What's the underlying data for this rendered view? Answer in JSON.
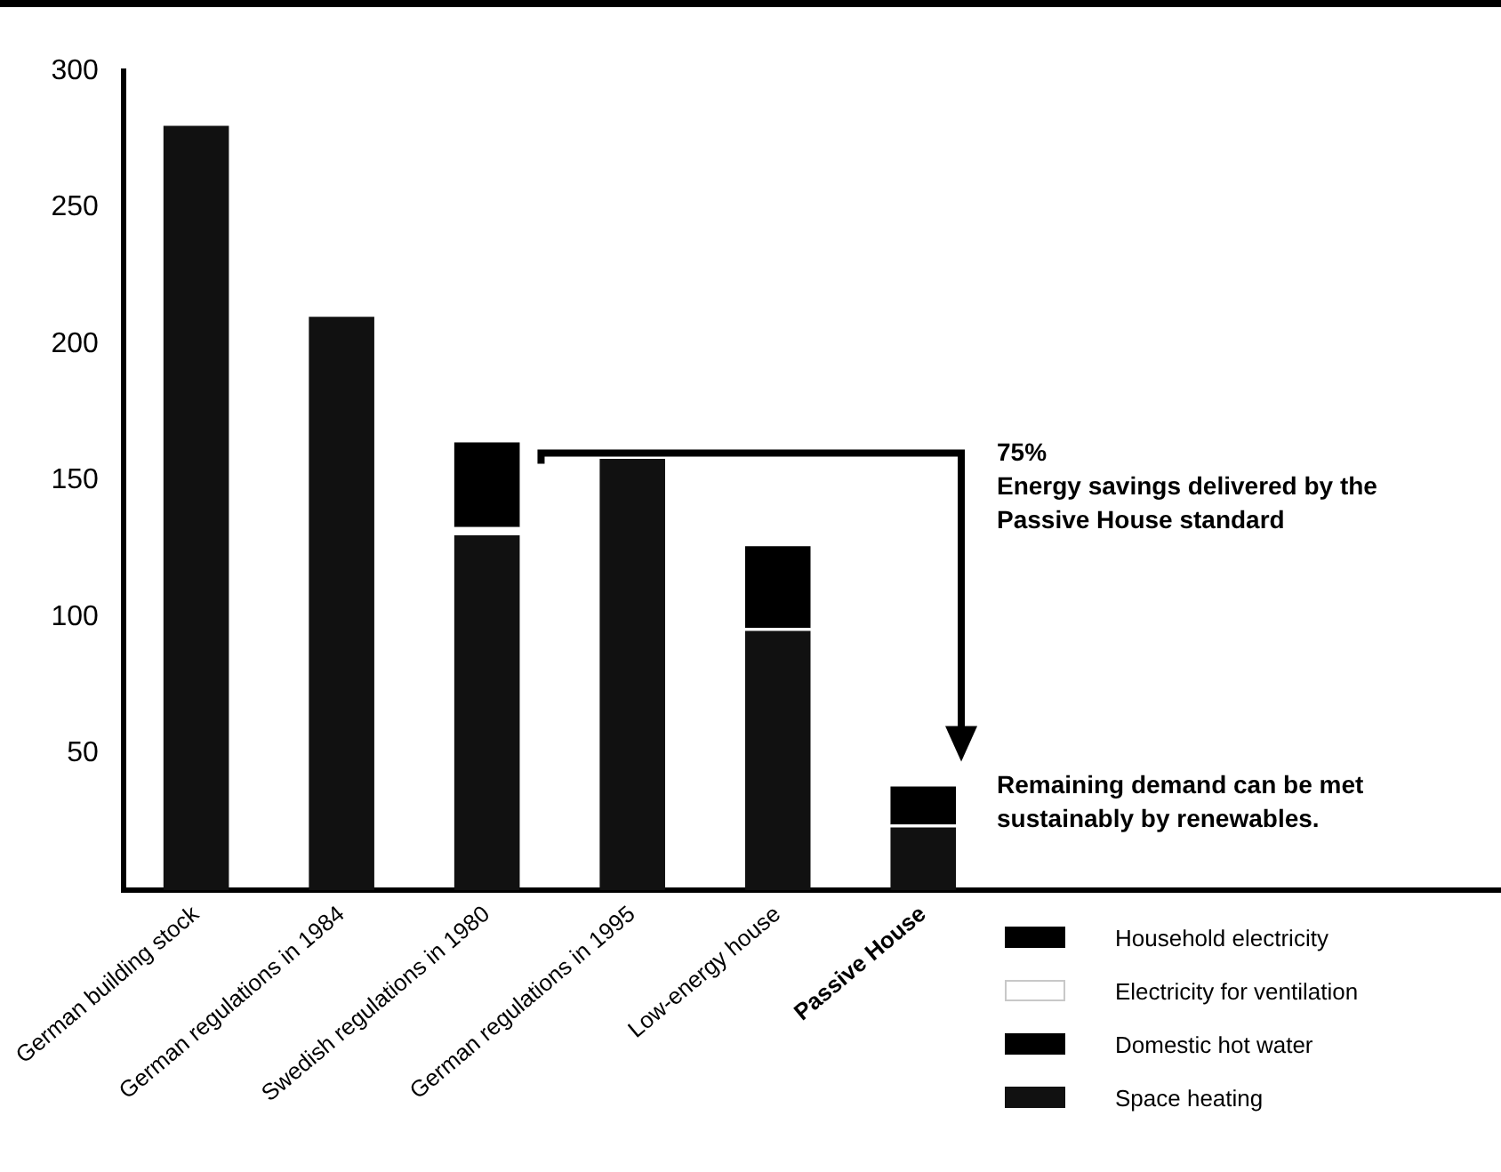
{
  "chart_data": {
    "type": "bar",
    "stacked": true,
    "categories": [
      "German building stock",
      "German regulations in 1984",
      "Swedish regulations in 1980",
      "German regulations in 1995",
      "Low-energy house",
      "Passive House"
    ],
    "series": [
      {
        "name": "Space heating",
        "color": "#111111",
        "values": [
          280,
          210,
          130,
          158,
          95,
          23
        ]
      },
      {
        "name": "Domestic hot water",
        "color": "#000000",
        "values": [
          null,
          null,
          null,
          null,
          null,
          null
        ]
      },
      {
        "name": "Electricity for ventilation",
        "color": "#ffffff",
        "values": [
          null,
          null,
          3,
          null,
          1,
          1
        ]
      },
      {
        "name": "Household electricity",
        "color": "#000000",
        "values": [
          null,
          null,
          31,
          null,
          30,
          14
        ]
      }
    ],
    "ylim": [
      0,
      300
    ],
    "yticks": [
      50,
      100,
      150,
      200,
      250,
      300
    ],
    "grid": false,
    "legend": "bottom right",
    "annotations": [
      "75%",
      "Energy savings delivered by the Passive House standard",
      "Remaining demand can be met sustainably by renewables."
    ]
  }
}
